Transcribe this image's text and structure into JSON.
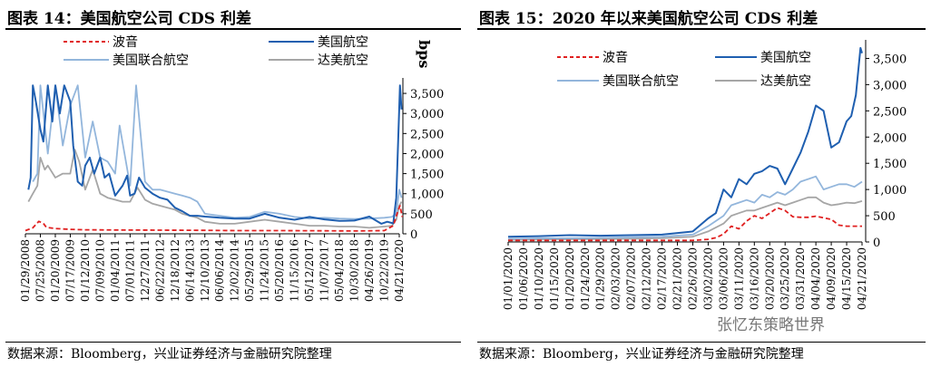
{
  "left_title": "图表 14：美国航空公司 CDS 利差",
  "right_title": "图表 15：2020 年以来美国航空公司 CDS 利差",
  "left_source": "数据来源：Bloomberg，兴业证券经济与金融研究院整理",
  "right_source": "数据来源：Bloomberg，兴业证券经济与金融研究院整理",
  "watermark": "张忆东策略世界",
  "colors": {
    "boeing": "#e02020",
    "american": "#1f5fb0",
    "united": "#93b6dc",
    "delta": "#a6a6a6"
  },
  "chart_data": [
    {
      "type": "line",
      "title": "美国航空公司 CDS 利差",
      "ylabel": "bps",
      "ylim": [
        0,
        3750
      ],
      "yticks": [
        "0",
        "500",
        "1,000",
        "1,500",
        "2,000",
        "2,500",
        "3,000",
        "3,500"
      ],
      "xticks": [
        "01/29/2008",
        "07/25/2008",
        "01/20/2009",
        "07/17/2009",
        "01/12/2010",
        "07/09/2010",
        "01/04/2011",
        "07/01/2011",
        "12/27/2011",
        "06/22/2012",
        "12/18/2012",
        "06/14/2013",
        "12/10/2013",
        "06/06/2014",
        "12/02/2014",
        "05/29/2015",
        "11/24/2015",
        "05/20/2016",
        "11/15/2016",
        "05/12/2017",
        "11/07/2017",
        "05/04/2018",
        "10/30/2018",
        "04/26/2019",
        "10/22/2019",
        "04/21/2020"
      ],
      "legend": [
        "波音",
        "美国航空",
        "美国联合航空",
        "达美航空"
      ],
      "series": [
        {
          "name": "波音",
          "x": [
            0,
            0.5,
            0.9,
            1.2,
            1.4,
            2,
            3,
            4,
            6,
            9,
            12,
            14,
            17,
            20,
            22,
            24,
            24.6,
            24.9,
            25.05,
            25.2
          ],
          "values": [
            80,
            150,
            310,
            260,
            160,
            130,
            110,
            100,
            95,
            90,
            85,
            80,
            80,
            75,
            70,
            80,
            200,
            560,
            700,
            420
          ]
        },
        {
          "name": "美国航空",
          "x": [
            0.2,
            0.35,
            0.5,
            0.7,
            1,
            1.2,
            1.5,
            1.8,
            2,
            2.3,
            2.6,
            3,
            3.2,
            3.5,
            3.8,
            4,
            4.3,
            4.6,
            5,
            5.3,
            5.6,
            6,
            6.2,
            6.5,
            6.8,
            7,
            7.3,
            7.6,
            8,
            8.5,
            9,
            9.5,
            10,
            10.5,
            11,
            11.5,
            12,
            13,
            14,
            15,
            16,
            17,
            18,
            19,
            20,
            21,
            22,
            23,
            23.8,
            24.2,
            24.6,
            24.8,
            24.95,
            25.05,
            25.15
          ],
          "values": [
            1100,
            1400,
            3700,
            3300,
            2600,
            2300,
            3700,
            2800,
            3700,
            3000,
            3700,
            3300,
            2200,
            1300,
            1200,
            1700,
            1900,
            1500,
            1900,
            1400,
            1500,
            950,
            1050,
            1200,
            1450,
            950,
            1000,
            1400,
            1150,
            1000,
            900,
            850,
            650,
            560,
            450,
            450,
            430,
            400,
            380,
            380,
            500,
            400,
            350,
            420,
            360,
            320,
            330,
            430,
            250,
            300,
            260,
            900,
            2600,
            3700,
            3100
          ]
        },
        {
          "name": "美国联合航空",
          "x": [
            0.5,
            0.8,
            1,
            1.5,
            2,
            2.5,
            3,
            3.5,
            4,
            4.5,
            5,
            5.5,
            6,
            6.3,
            7,
            7.4,
            8,
            8.5,
            9,
            9.5,
            10,
            10.5,
            11,
            11.5,
            12,
            13,
            14,
            15,
            16,
            17,
            18,
            19,
            20,
            21,
            22,
            23,
            24,
            24.5,
            24.8,
            25,
            25.15
          ],
          "values": [
            1300,
            1500,
            3700,
            2000,
            3700,
            2200,
            3200,
            3700,
            1900,
            2800,
            1900,
            1800,
            1500,
            2700,
            1200,
            3700,
            1300,
            1100,
            1100,
            1050,
            1000,
            950,
            900,
            800,
            500,
            450,
            400,
            420,
            550,
            500,
            420,
            380,
            400,
            380,
            370,
            380,
            400,
            420,
            500,
            1100,
            900
          ]
        },
        {
          "name": "达美航空",
          "x": [
            0.2,
            0.5,
            0.8,
            1,
            1.3,
            1.5,
            2,
            2.5,
            3,
            3.3,
            3.6,
            4,
            4.5,
            5,
            5.5,
            6,
            6.5,
            7,
            7.5,
            8,
            8.5,
            9,
            9.5,
            10,
            10.5,
            11,
            11.5,
            12,
            13,
            14,
            15,
            16,
            17,
            18,
            19,
            20,
            21,
            22,
            23,
            24,
            24.5,
            24.8,
            25,
            25.15
          ],
          "values": [
            800,
            1000,
            1200,
            1900,
            1600,
            1700,
            1400,
            1500,
            1500,
            2100,
            1800,
            1100,
            1600,
            1000,
            900,
            850,
            800,
            800,
            1150,
            850,
            750,
            700,
            650,
            600,
            500,
            450,
            400,
            300,
            250,
            250,
            300,
            350,
            300,
            250,
            200,
            200,
            180,
            180,
            150,
            180,
            200,
            350,
            700,
            800
          ]
        }
      ]
    },
    {
      "type": "line",
      "title": "2020 年以来美国航空公司 CDS 利差",
      "ylim": [
        0,
        3750
      ],
      "yticks": [
        "0",
        "500",
        "1,000",
        "1,500",
        "2,000",
        "2,500",
        "3,000",
        "3,500"
      ],
      "xticks": [
        "01/01/2020",
        "01/06/2020",
        "01/10/2020",
        "01/15/2020",
        "01/20/2020",
        "01/24/2020",
        "01/29/2020",
        "02/03/2020",
        "02/07/2020",
        "02/12/2020",
        "02/17/2020",
        "02/21/2020",
        "02/26/2020",
        "03/02/2020",
        "03/06/2020",
        "03/11/2020",
        "03/16/2020",
        "03/20/2020",
        "03/25/2020",
        "03/31/2020",
        "04/04/2020",
        "04/09/2020",
        "04/15/2020",
        "04/21/2020"
      ],
      "legend": [
        "波音",
        "美国航空",
        "美国联合航空",
        "达美航空"
      ],
      "series": [
        {
          "name": "波音",
          "x": [
            0,
            12,
            13,
            13.5,
            14,
            14.5,
            15,
            15.5,
            16,
            16.5,
            17,
            17.5,
            18,
            18.5,
            19,
            19.5,
            20,
            21,
            21.5,
            22,
            23
          ],
          "values": [
            30,
            30,
            50,
            80,
            150,
            300,
            250,
            400,
            500,
            450,
            550,
            650,
            600,
            480,
            470,
            470,
            490,
            430,
            320,
            300,
            300
          ]
        },
        {
          "name": "美国航空",
          "x": [
            0,
            2,
            4,
            6,
            8,
            10,
            12,
            13,
            13.5,
            14,
            14.5,
            15,
            15.5,
            16,
            16.5,
            17,
            17.5,
            18,
            18.5,
            19,
            19.5,
            20,
            20.5,
            21,
            21.5,
            22,
            22.3,
            22.6,
            22.9,
            23
          ],
          "values": [
            100,
            110,
            130,
            120,
            130,
            140,
            200,
            450,
            550,
            1000,
            850,
            1200,
            1100,
            1300,
            1350,
            1450,
            1400,
            1100,
            1400,
            1700,
            2100,
            2600,
            2500,
            1800,
            1900,
            2300,
            2400,
            2800,
            3700,
            3600
          ]
        },
        {
          "name": "美国联合航空",
          "x": [
            0,
            2,
            4,
            6,
            8,
            10,
            12,
            13,
            14,
            14.5,
            15,
            15.5,
            16,
            16.5,
            17,
            17.5,
            18,
            18.5,
            19,
            19.5,
            20,
            20.5,
            21,
            21.5,
            22,
            22.5,
            23
          ],
          "values": [
            60,
            70,
            70,
            80,
            90,
            100,
            140,
            300,
            500,
            700,
            750,
            800,
            750,
            900,
            850,
            950,
            900,
            1000,
            1150,
            1200,
            1250,
            1000,
            1050,
            1100,
            1100,
            1050,
            1150
          ]
        },
        {
          "name": "达美航空",
          "x": [
            0,
            2,
            4,
            6,
            8,
            10,
            12,
            13,
            14,
            14.5,
            15,
            15.5,
            16,
            16.5,
            17,
            17.5,
            18,
            18.5,
            19,
            19.5,
            20,
            20.5,
            21,
            21.5,
            22,
            22.5,
            23
          ],
          "values": [
            40,
            45,
            50,
            55,
            60,
            70,
            100,
            200,
            350,
            500,
            550,
            600,
            600,
            650,
            700,
            750,
            700,
            750,
            800,
            850,
            850,
            750,
            700,
            720,
            750,
            740,
            780
          ]
        }
      ]
    }
  ]
}
